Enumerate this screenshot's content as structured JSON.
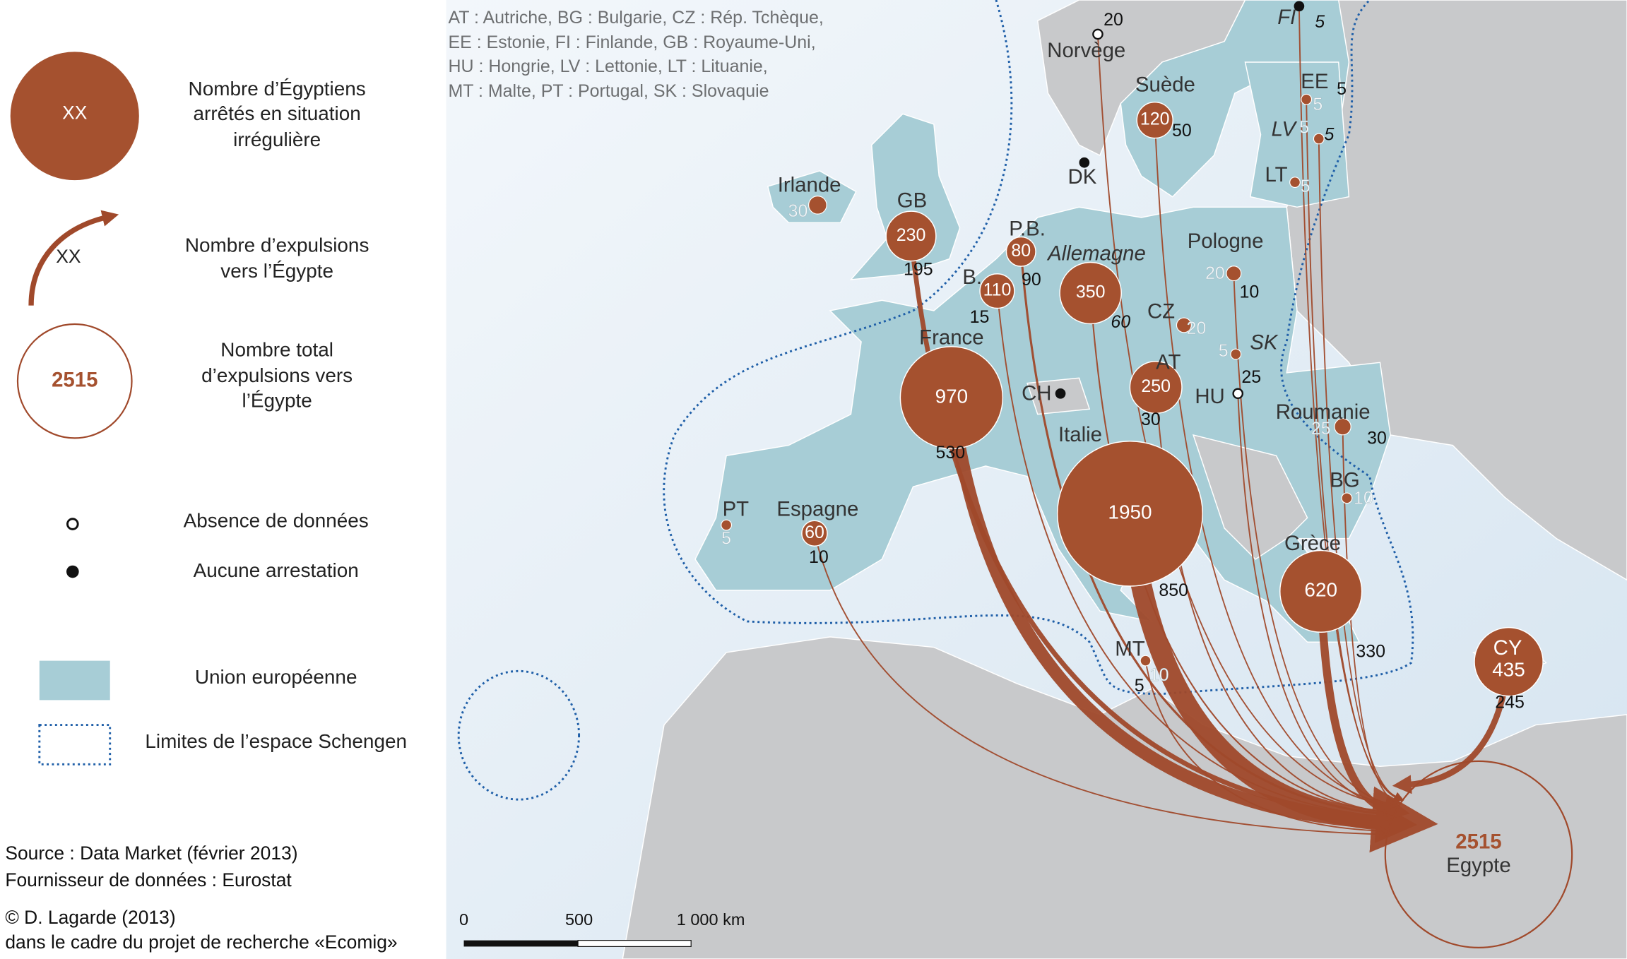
{
  "legend": {
    "circle_sample": "XX",
    "circle_label": [
      "Nombre d’Égyptiens",
      "arrêtés en situation",
      "irrégulière"
    ],
    "arrow_sample": "XX",
    "arrow_label": [
      "Nombre d’expulsions",
      "vers l’Égypte"
    ],
    "total_sample": "2515",
    "total_label": [
      "Nombre total",
      "d’expulsions vers",
      "l’Égypte"
    ],
    "no_data": "Absence de données",
    "no_arrest": "Aucune arrestation",
    "eu": "Union européenne",
    "schengen": "Limites de l’espace Schengen"
  },
  "abbreviations": [
    "AT : Autriche, BG : Bulgarie, CZ : Rép. Tchèque,",
    "EE : Estonie, FI : Finlande, GB : Royaume-Uni,",
    "HU : Hongrie, LV : Lettonie, LT : Lituanie,",
    "MT : Malte, PT : Portugal, SK : Slovaquie"
  ],
  "countries": [
    {
      "label": "Norvège",
      "expelled": 20,
      "marker": "open"
    },
    {
      "label": "Suède",
      "arrested": 120,
      "expelled": 50
    },
    {
      "label": "FI",
      "expelled": 5,
      "marker": "filled"
    },
    {
      "label": "EE",
      "arrested": 5,
      "expelled": 5
    },
    {
      "label": "LV",
      "arrested": 5,
      "expelled": 5
    },
    {
      "label": "LT",
      "arrested": 5
    },
    {
      "label": "DK",
      "marker": "filled"
    },
    {
      "label": "Irlande",
      "arrested": 30
    },
    {
      "label": "GB",
      "arrested": 230,
      "expelled": 195
    },
    {
      "label": "P.B.",
      "arrested": 80,
      "expelled": 90
    },
    {
      "label": "B.",
      "arrested": 110,
      "expelled": 15
    },
    {
      "label": "Allemagne",
      "arrested": 350,
      "expelled": 60
    },
    {
      "label": "Pologne",
      "arrested": 20,
      "expelled": 10
    },
    {
      "label": "CZ",
      "arrested": 20
    },
    {
      "label": "SK",
      "arrested": 5
    },
    {
      "label": "AT",
      "arrested": 250,
      "expelled": 30
    },
    {
      "label": "HU",
      "expelled": 25,
      "marker": "open"
    },
    {
      "label": "CH",
      "marker": "filled"
    },
    {
      "label": "France",
      "arrested": 970,
      "expelled": 530
    },
    {
      "label": "Italie",
      "arrested": 1950,
      "expelled": 850
    },
    {
      "label": "Roumanie",
      "arrested": 25,
      "expelled": 30
    },
    {
      "label": "BG",
      "arrested": 10
    },
    {
      "label": "Grèce",
      "arrested": 620,
      "expelled": 330
    },
    {
      "label": "PT",
      "arrested": 5
    },
    {
      "label": "Espagne",
      "arrested": 60,
      "expelled": 10
    },
    {
      "label": "MT",
      "arrested": 10,
      "expelled": 5
    },
    {
      "label": "CY",
      "arrested": 435,
      "expelled": 245
    }
  ],
  "destination": {
    "total": 2515,
    "label": "Egypte"
  },
  "scale": [
    "0",
    "500",
    "1 000 km"
  ],
  "source": [
    "Source : Data Market (février 2013)",
    "Fournisseur de données : Eurostat",
    "© D. Lagarde (2013)",
    "dans le cadre du projet de recherche «Ecomig»"
  ]
}
